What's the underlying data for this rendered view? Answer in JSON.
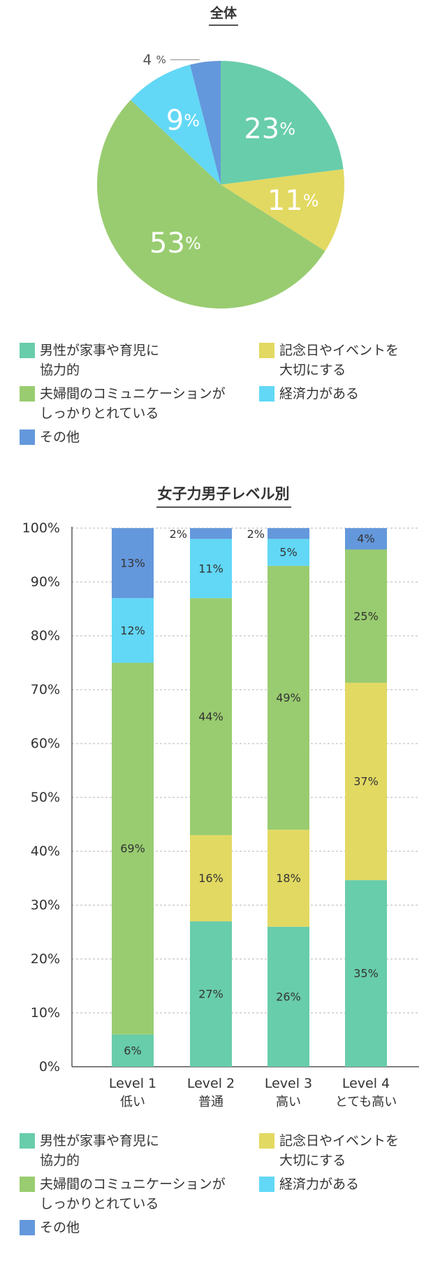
{
  "colors": {
    "male_cooperative": "#68cdaa",
    "anniversaries": "#e2d962",
    "communication": "#99cc70",
    "financial": "#62d8f6",
    "other": "#6498dc"
  },
  "legend_items": [
    {
      "key": "male_cooperative",
      "label": "男性が家事や育児に\n協力的",
      "color": "#68cdaa"
    },
    {
      "key": "anniversaries",
      "label": "記念日やイベントを\n大切にする",
      "color": "#e2d962"
    },
    {
      "key": "communication",
      "label": "夫婦間のコミュニケーションが\nしっかりとれている",
      "color": "#99cc70"
    },
    {
      "key": "financial",
      "label": "経済力がある",
      "color": "#62d8f6"
    },
    {
      "key": "other",
      "label": "その他",
      "color": "#6498dc"
    }
  ],
  "chart_data": [
    {
      "type": "pie",
      "title": "全体",
      "slices": [
        {
          "key": "male_cooperative",
          "value": 23,
          "label": "23",
          "unit": "%"
        },
        {
          "key": "anniversaries",
          "value": 11,
          "label": "11",
          "unit": "%"
        },
        {
          "key": "communication",
          "value": 53,
          "label": "53",
          "unit": "%"
        },
        {
          "key": "financial",
          "value": 9,
          "label": "9",
          "unit": "%"
        },
        {
          "key": "other",
          "value": 4,
          "label": "4",
          "unit": "%"
        }
      ]
    },
    {
      "type": "bar",
      "stacked": true,
      "title": "女子力男子レベル別",
      "categories": [
        {
          "line1": "Level 1",
          "line2": "低い"
        },
        {
          "line1": "Level 2",
          "line2": "普通"
        },
        {
          "line1": "Level 3",
          "line2": "高い"
        },
        {
          "line1": "Level 4",
          "line2": "とても高い"
        }
      ],
      "y_ticks": [
        "0%",
        "10%",
        "20%",
        "30%",
        "40%",
        "50%",
        "60%",
        "70%",
        "80%",
        "90%",
        "100%"
      ],
      "ylim": [
        0,
        100
      ],
      "grid": true,
      "series": [
        {
          "key": "male_cooperative",
          "values": [
            6,
            27,
            26,
            35
          ],
          "labels": [
            "6%",
            "27%",
            "26%",
            "35%"
          ]
        },
        {
          "key": "anniversaries",
          "values": [
            0,
            16,
            18,
            37
          ],
          "labels": [
            "",
            "16%",
            "18%",
            "37%"
          ]
        },
        {
          "key": "communication",
          "values": [
            69,
            44,
            49,
            25
          ],
          "labels": [
            "69%",
            "44%",
            "49%",
            "25%"
          ]
        },
        {
          "key": "financial",
          "values": [
            12,
            11,
            5,
            0
          ],
          "labels": [
            "12%",
            "11%",
            "5%",
            ""
          ]
        },
        {
          "key": "other",
          "values": [
            13,
            2,
            2,
            4
          ],
          "labels": [
            "13%",
            "2%",
            "2%",
            "4%"
          ]
        }
      ]
    }
  ]
}
